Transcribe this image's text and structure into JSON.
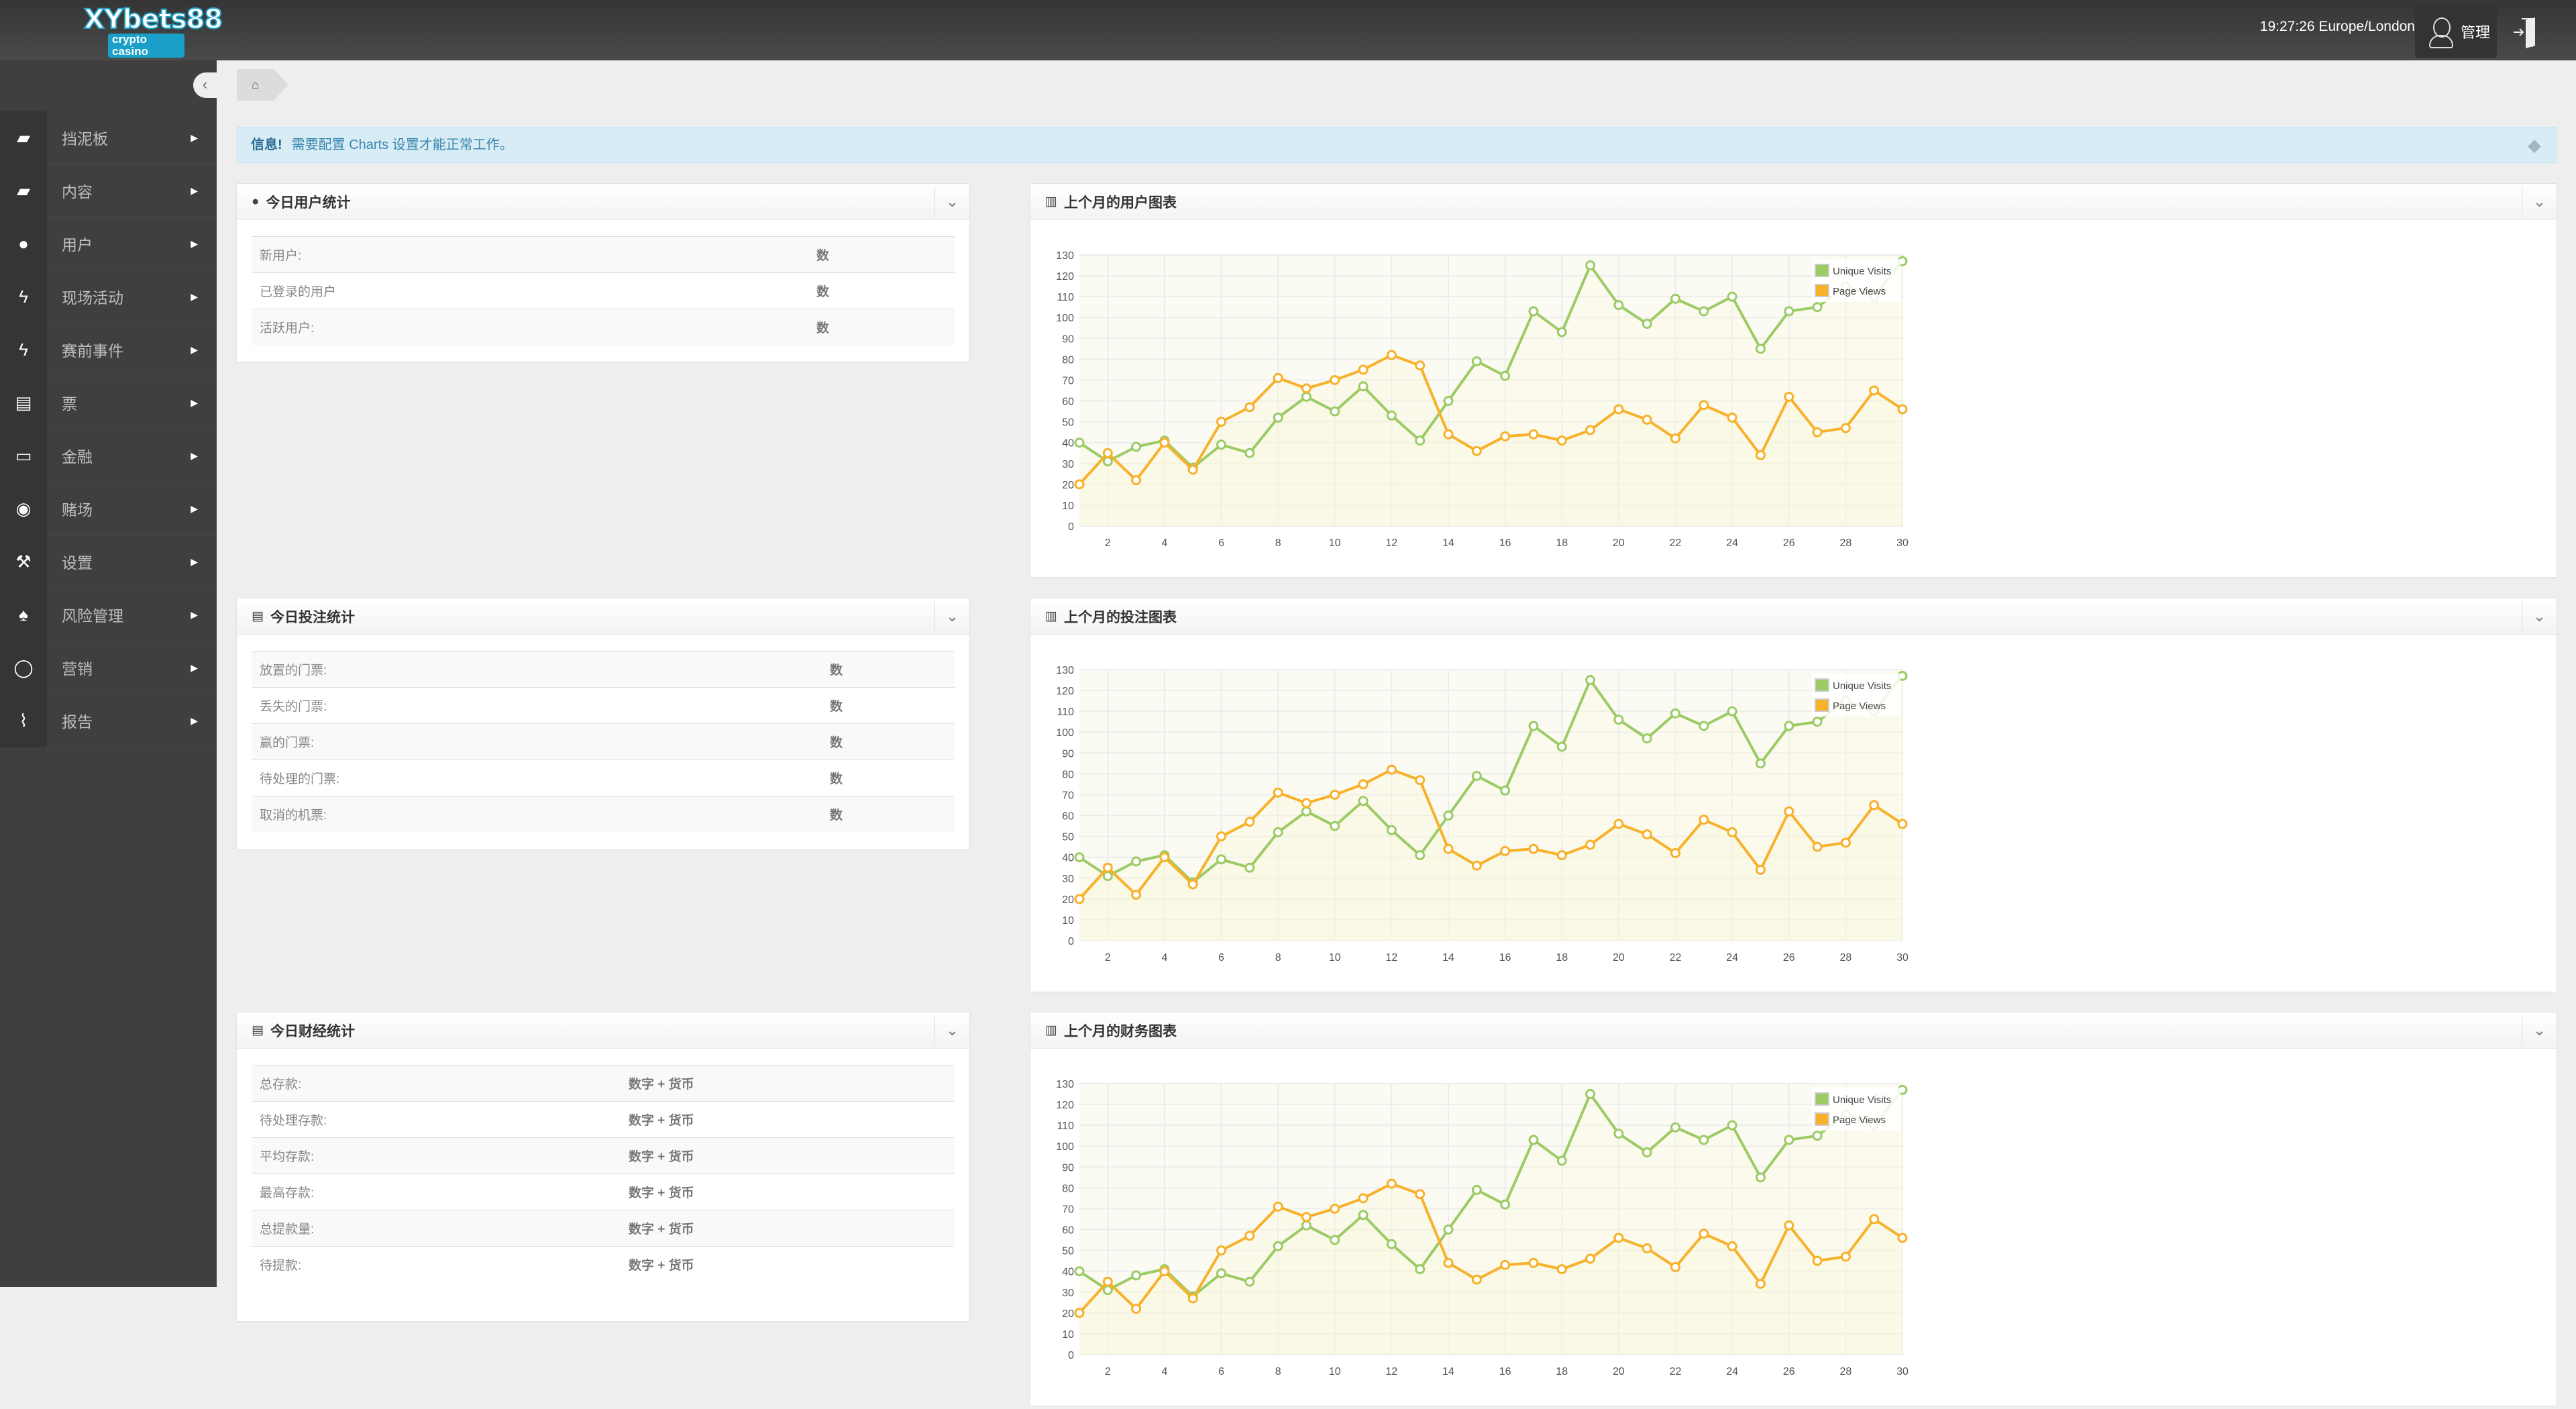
{
  "header": {
    "logo_text": "XYbets88",
    "logo_sub": "crypto casino",
    "clock": "19:27:26 Europe/London",
    "user": "管理",
    "icons": {
      "user": "user-avatar-icon",
      "logout": "logout-door-icon"
    }
  },
  "sidebar": {
    "items": [
      {
        "label": "挡泥板",
        "icon": "book-icon",
        "glyph": "▰"
      },
      {
        "label": "内容",
        "icon": "book-icon",
        "glyph": "▰"
      },
      {
        "label": "用户",
        "icon": "user-icon",
        "glyph": "●"
      },
      {
        "label": "现场活动",
        "icon": "bolt-icon",
        "glyph": "ϟ"
      },
      {
        "label": "赛前事件",
        "icon": "bolt-icon",
        "glyph": "ϟ"
      },
      {
        "label": "票",
        "icon": "file-icon",
        "glyph": "▤"
      },
      {
        "label": "金融",
        "icon": "money-icon",
        "glyph": "▭"
      },
      {
        "label": "赌场",
        "icon": "play-circle-icon",
        "glyph": "◉"
      },
      {
        "label": "设置",
        "icon": "wrench-icon",
        "glyph": "⚒"
      },
      {
        "label": "风险管理",
        "icon": "fire-icon",
        "glyph": "♠"
      },
      {
        "label": "营销",
        "icon": "comment-icon",
        "glyph": "◯"
      },
      {
        "label": "报告",
        "icon": "paperclip-icon",
        "glyph": "⌇"
      }
    ]
  },
  "alert": {
    "title": "信息!",
    "message": "需要配置 Charts 设置才能正常工作。"
  },
  "panels": {
    "users": {
      "title": "今日用户统计",
      "rows": [
        {
          "label": "新用户:",
          "value": "数"
        },
        {
          "label": "已登录的用户",
          "value": "数"
        },
        {
          "label": "活跃用户:",
          "value": "数"
        }
      ]
    },
    "bets": {
      "title": "今日投注统计",
      "rows": [
        {
          "label": "放置的门票:",
          "value": "数"
        },
        {
          "label": "丢失的门票:",
          "value": "数"
        },
        {
          "label": "赢的门票:",
          "value": "数"
        },
        {
          "label": "待处理的门票:",
          "value": "数"
        },
        {
          "label": "取消的机票:",
          "value": "数"
        }
      ]
    },
    "finance": {
      "title": "今日财经统计",
      "rows": [
        {
          "label": "总存款:",
          "value": "数字 + 货币"
        },
        {
          "label": "待处理存款:",
          "value": "数字 + 货币"
        },
        {
          "label": "平均存款:",
          "value": "数字 + 货币"
        },
        {
          "label": "最高存款:",
          "value": "数字 + 货币"
        },
        {
          "label": "总提款量:",
          "value": "数字 + 货币"
        },
        {
          "label": "待提款:",
          "value": "数字 + 货币"
        }
      ]
    },
    "chart_titles": [
      "上个月的用户图表",
      "上个月的投注图表",
      "上个月的财务图表"
    ]
  },
  "chart_data": [
    {
      "type": "line",
      "x": [
        1,
        2,
        3,
        4,
        5,
        6,
        7,
        8,
        9,
        10,
        11,
        12,
        13,
        14,
        15,
        16,
        17,
        18,
        19,
        20,
        21,
        22,
        23,
        24,
        25,
        26,
        27,
        28,
        29,
        30
      ],
      "xticks": [
        2,
        4,
        6,
        8,
        10,
        12,
        14,
        16,
        18,
        20,
        22,
        24,
        26,
        28,
        30
      ],
      "yticks": [
        0,
        10,
        20,
        30,
        40,
        50,
        60,
        70,
        80,
        90,
        100,
        110,
        120,
        130
      ],
      "ylim": [
        0,
        130
      ],
      "grid": true,
      "legend": "top-right",
      "series": [
        {
          "name": "Unique Visits",
          "color": "#9ccb66",
          "values": [
            40,
            31,
            38,
            41,
            28,
            39,
            35,
            52,
            62,
            55,
            67,
            53,
            41,
            60,
            79,
            72,
            103,
            93,
            125,
            106,
            97,
            109,
            103,
            110,
            85,
            103,
            105,
            115,
            110,
            127
          ]
        },
        {
          "name": "Page Views",
          "color": "#f7b12b",
          "values": [
            20,
            35,
            22,
            40,
            27,
            50,
            57,
            71,
            66,
            70,
            75,
            82,
            77,
            44,
            36,
            43,
            44,
            41,
            46,
            56,
            51,
            42,
            58,
            52,
            34,
            62,
            45,
            47,
            65,
            56
          ]
        }
      ]
    },
    {
      "type": "line",
      "x": [
        1,
        2,
        3,
        4,
        5,
        6,
        7,
        8,
        9,
        10,
        11,
        12,
        13,
        14,
        15,
        16,
        17,
        18,
        19,
        20,
        21,
        22,
        23,
        24,
        25,
        26,
        27,
        28,
        29,
        30
      ],
      "xticks": [
        2,
        4,
        6,
        8,
        10,
        12,
        14,
        16,
        18,
        20,
        22,
        24,
        26,
        28,
        30
      ],
      "yticks": [
        0,
        10,
        20,
        30,
        40,
        50,
        60,
        70,
        80,
        90,
        100,
        110,
        120,
        130
      ],
      "ylim": [
        0,
        130
      ],
      "grid": true,
      "legend": "top-right",
      "series": [
        {
          "name": "Unique Visits",
          "color": "#9ccb66",
          "values": [
            40,
            31,
            38,
            41,
            28,
            39,
            35,
            52,
            62,
            55,
            67,
            53,
            41,
            60,
            79,
            72,
            103,
            93,
            125,
            106,
            97,
            109,
            103,
            110,
            85,
            103,
            105,
            115,
            110,
            127
          ]
        },
        {
          "name": "Page Views",
          "color": "#f7b12b",
          "values": [
            20,
            35,
            22,
            40,
            27,
            50,
            57,
            71,
            66,
            70,
            75,
            82,
            77,
            44,
            36,
            43,
            44,
            41,
            46,
            56,
            51,
            42,
            58,
            52,
            34,
            62,
            45,
            47,
            65,
            56
          ]
        }
      ]
    },
    {
      "type": "line",
      "x": [
        1,
        2,
        3,
        4,
        5,
        6,
        7,
        8,
        9,
        10,
        11,
        12,
        13,
        14,
        15,
        16,
        17,
        18,
        19,
        20,
        21,
        22,
        23,
        24,
        25,
        26,
        27,
        28,
        29,
        30
      ],
      "xticks": [
        2,
        4,
        6,
        8,
        10,
        12,
        14,
        16,
        18,
        20,
        22,
        24,
        26,
        28,
        30
      ],
      "yticks": [
        0,
        10,
        20,
        30,
        40,
        50,
        60,
        70,
        80,
        90,
        100,
        110,
        120,
        130
      ],
      "ylim": [
        0,
        130
      ],
      "grid": true,
      "legend": "top-right",
      "series": [
        {
          "name": "Unique Visits",
          "color": "#9ccb66",
          "values": [
            40,
            31,
            38,
            41,
            28,
            39,
            35,
            52,
            62,
            55,
            67,
            53,
            41,
            60,
            79,
            72,
            103,
            93,
            125,
            106,
            97,
            109,
            103,
            110,
            85,
            103,
            105,
            115,
            110,
            127
          ]
        },
        {
          "name": "Page Views",
          "color": "#f7b12b",
          "values": [
            20,
            35,
            22,
            40,
            27,
            50,
            57,
            71,
            66,
            70,
            75,
            82,
            77,
            44,
            36,
            43,
            44,
            41,
            46,
            56,
            51,
            42,
            58,
            52,
            34,
            62,
            45,
            47,
            65,
            56
          ]
        }
      ]
    }
  ]
}
